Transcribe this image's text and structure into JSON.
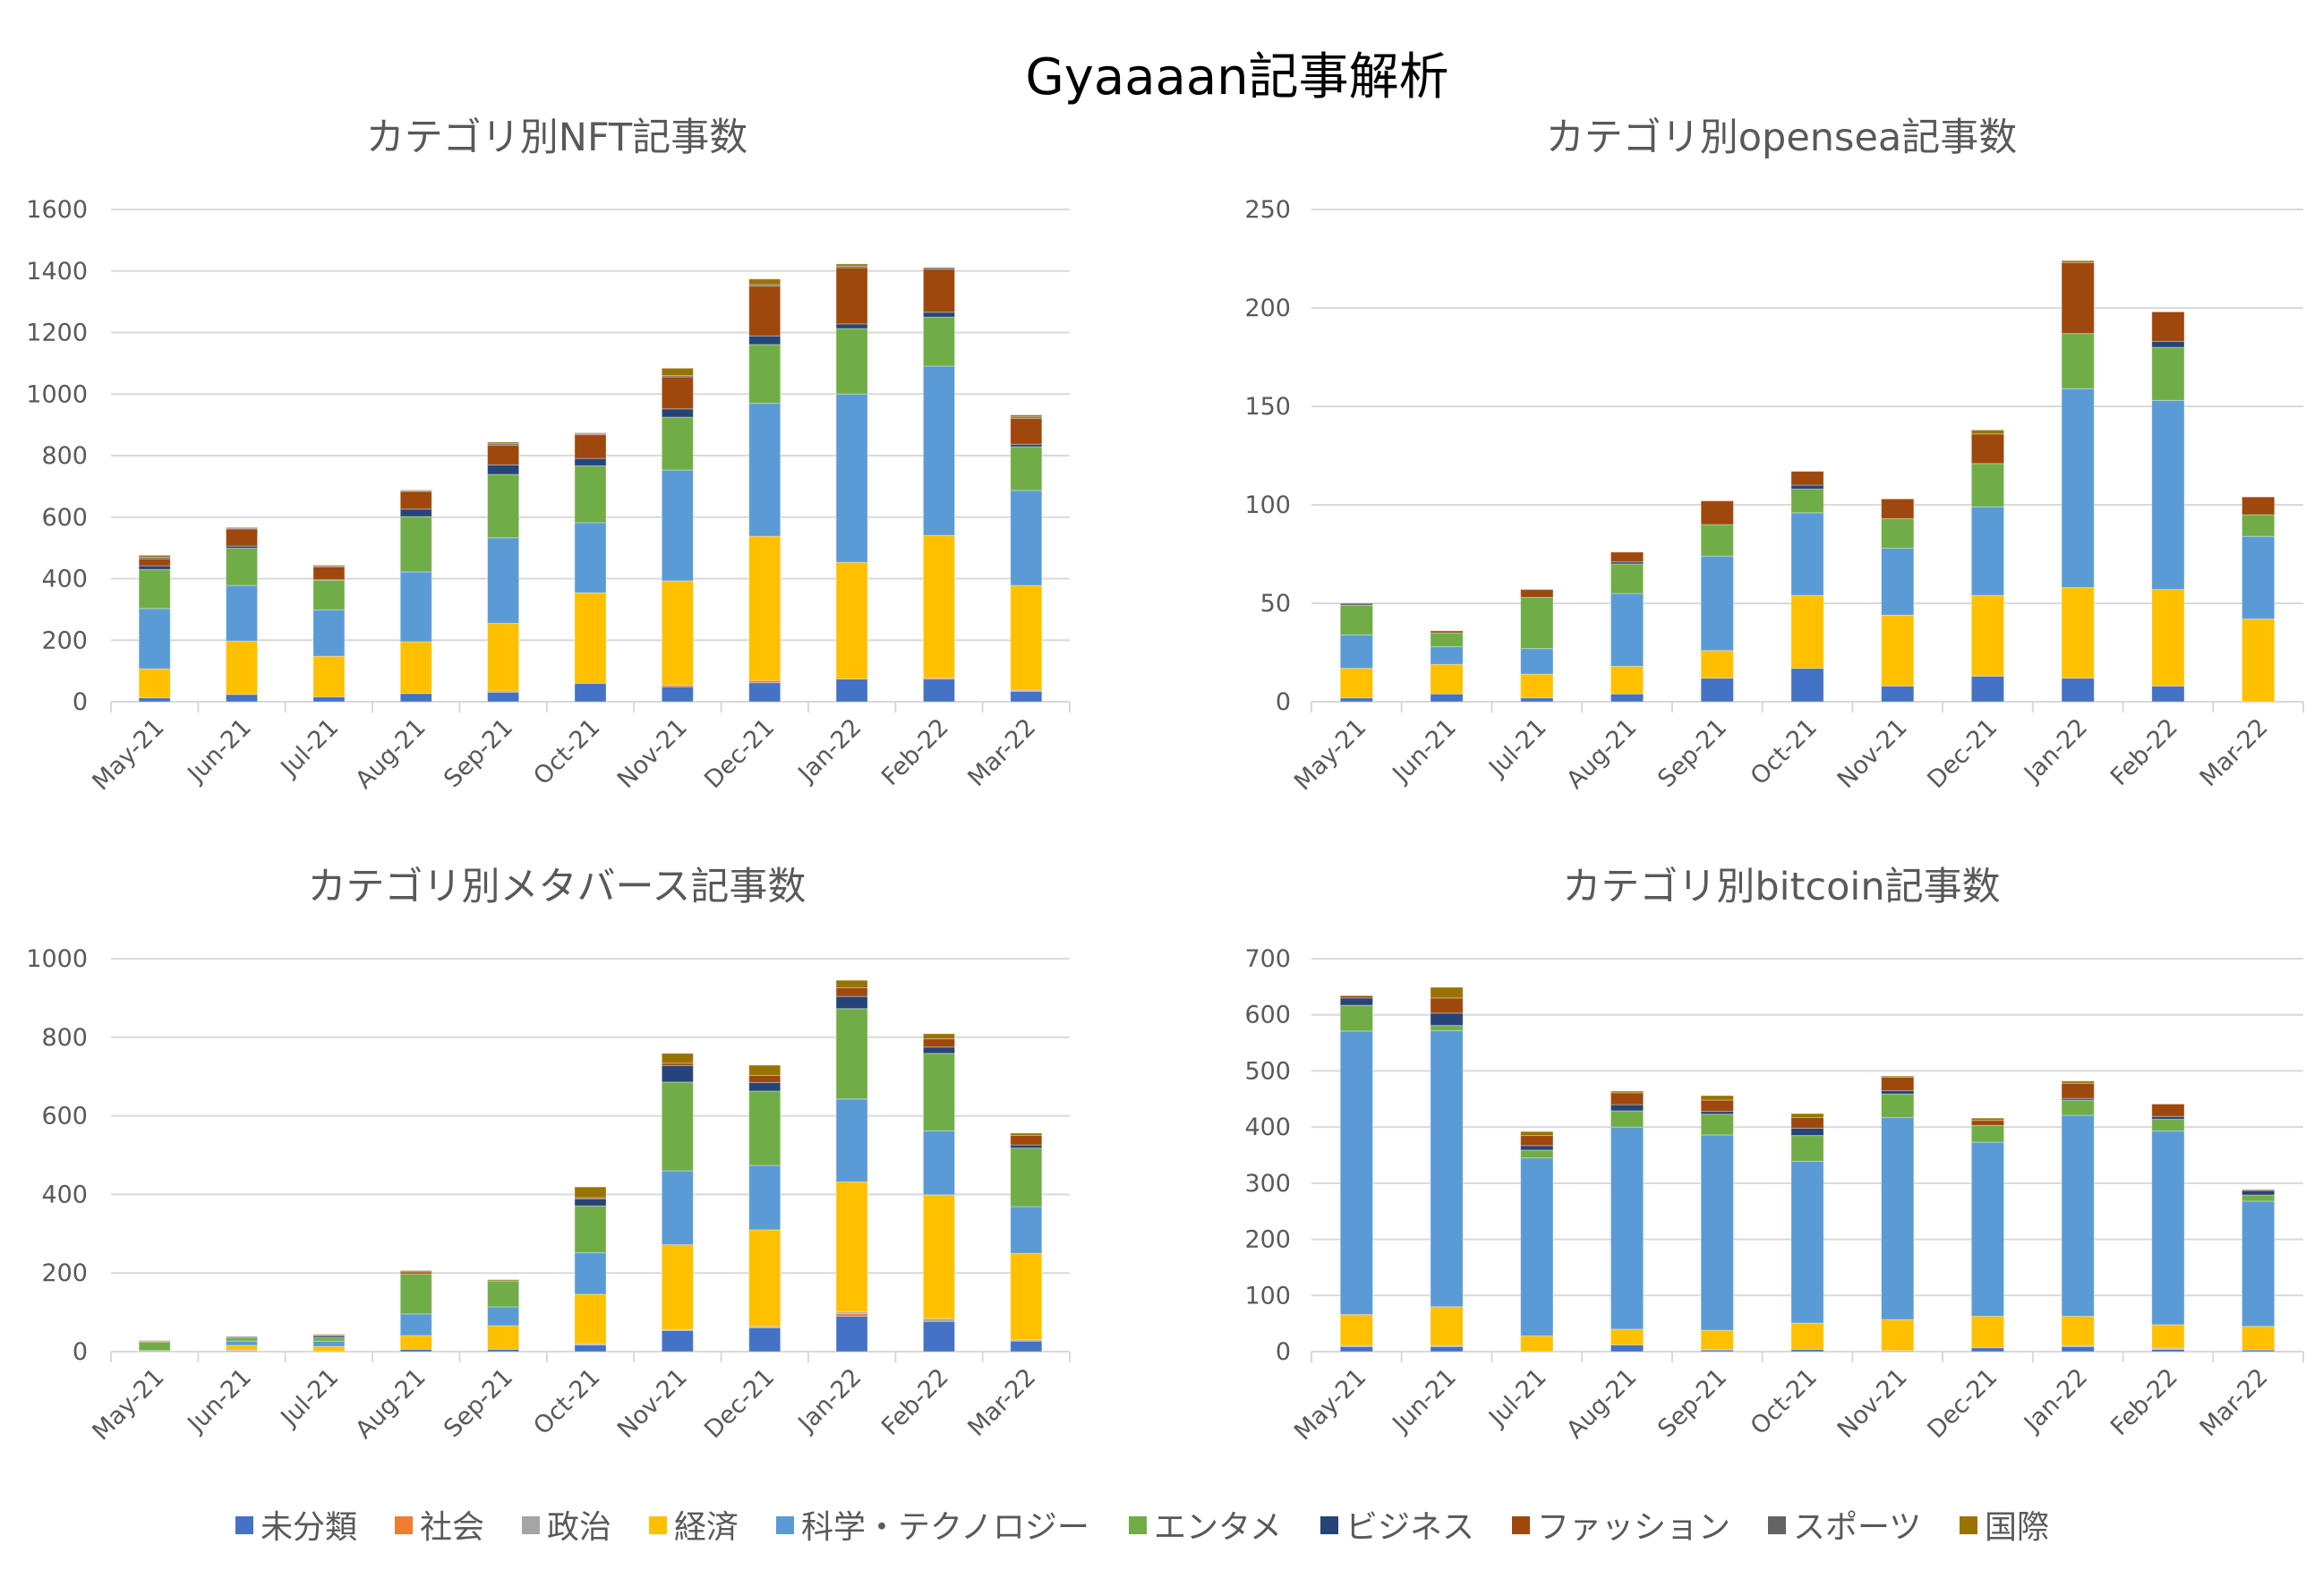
{
  "title": "Gyaaaan記事解析",
  "legend": [
    {
      "label": "未分類",
      "color": "#4472C4"
    },
    {
      "label": "社会",
      "color": "#ED7D31"
    },
    {
      "label": "政治",
      "color": "#A5A5A5"
    },
    {
      "label": "経済",
      "color": "#FFC000"
    },
    {
      "label": "科学・テクノロジー",
      "color": "#5B9BD5"
    },
    {
      "label": "エンタメ",
      "color": "#70AD47"
    },
    {
      "label": "ビジネス",
      "color": "#264478"
    },
    {
      "label": "ファッション",
      "color": "#9E480E"
    },
    {
      "label": "スポーツ",
      "color": "#636363"
    },
    {
      "label": "国際",
      "color": "#997300"
    }
  ],
  "chart_data": [
    {
      "type": "bar",
      "stacked": true,
      "title": "カテゴリ別NFT記事数",
      "categories": [
        "May-21",
        "Jun-21",
        "Jul-21",
        "Aug-21",
        "Sep-21",
        "Oct-21",
        "Nov-21",
        "Dec-21",
        "Jan-22",
        "Feb-22",
        "Mar-22"
      ],
      "ylim": [
        0,
        1600
      ],
      "ytick_step": 200,
      "grid": true,
      "legend": "bottom",
      "series": [
        {
          "name": "未分類",
          "values": [
            13,
            24,
            16,
            27,
            31,
            60,
            49,
            62,
            74,
            74,
            34
          ]
        },
        {
          "name": "社会",
          "values": [
            0,
            0,
            0,
            0,
            4,
            0,
            5,
            7,
            0,
            4,
            0
          ]
        },
        {
          "name": "政治",
          "values": [
            0,
            0,
            0,
            0,
            0,
            0,
            0,
            0,
            0,
            0,
            4
          ]
        },
        {
          "name": "経済",
          "values": [
            94,
            173,
            132,
            168,
            220,
            294,
            339,
            469,
            379,
            463,
            340
          ]
        },
        {
          "name": "科学・テクノロジー",
          "values": [
            196,
            181,
            151,
            227,
            278,
            228,
            360,
            432,
            547,
            550,
            309
          ]
        },
        {
          "name": "エンタメ",
          "values": [
            127,
            121,
            96,
            180,
            206,
            185,
            172,
            191,
            213,
            159,
            142
          ]
        },
        {
          "name": "ビジネス",
          "values": [
            12,
            7,
            2,
            24,
            31,
            24,
            27,
            28,
            15,
            16,
            8
          ]
        },
        {
          "name": "ファッション",
          "values": [
            23,
            56,
            42,
            58,
            64,
            77,
            104,
            162,
            183,
            140,
            84
          ]
        },
        {
          "name": "スポーツ",
          "values": [
            5,
            3,
            3,
            2,
            5,
            3,
            4,
            5,
            5,
            5,
            5
          ]
        },
        {
          "name": "国際",
          "values": [
            6,
            2,
            2,
            2,
            5,
            3,
            24,
            18,
            7,
            0,
            6
          ]
        }
      ]
    },
    {
      "type": "bar",
      "stacked": true,
      "title": "カテゴリ別opensea記事数",
      "categories": [
        "May-21",
        "Jun-21",
        "Jul-21",
        "Aug-21",
        "Sep-21",
        "Oct-21",
        "Nov-21",
        "Dec-21",
        "Jan-22",
        "Feb-22",
        "Mar-22"
      ],
      "ylim": [
        0,
        250
      ],
      "ytick_step": 50,
      "grid": true,
      "legend": "bottom",
      "series": [
        {
          "name": "未分類",
          "values": [
            2,
            4,
            2,
            4,
            12,
            17,
            8,
            13,
            12,
            8,
            0
          ]
        },
        {
          "name": "社会",
          "values": [
            0,
            0,
            0,
            0,
            0,
            0,
            0,
            0,
            0,
            0,
            0
          ]
        },
        {
          "name": "政治",
          "values": [
            0,
            0,
            0,
            0,
            0,
            0,
            0,
            0,
            0,
            0,
            0
          ]
        },
        {
          "name": "経済",
          "values": [
            15,
            15,
            12,
            14,
            14,
            37,
            36,
            41,
            46,
            49,
            42
          ]
        },
        {
          "name": "科学・テクノロジー",
          "values": [
            17,
            9,
            13,
            37,
            48,
            42,
            34,
            45,
            101,
            96,
            42
          ]
        },
        {
          "name": "エンタメ",
          "values": [
            15,
            7,
            26,
            15,
            16,
            12,
            15,
            22,
            28,
            27,
            11
          ]
        },
        {
          "name": "ビジネス",
          "values": [
            0,
            0,
            0,
            1,
            0,
            2,
            0,
            0,
            0,
            3,
            0
          ]
        },
        {
          "name": "ファッション",
          "values": [
            0,
            1,
            4,
            5,
            12,
            7,
            10,
            15,
            36,
            15,
            9
          ]
        },
        {
          "name": "スポーツ",
          "values": [
            1,
            0,
            0,
            0,
            0,
            0,
            0,
            0,
            0,
            0,
            0
          ]
        },
        {
          "name": "国際",
          "values": [
            0,
            0,
            0,
            0,
            0,
            0,
            0,
            2,
            1,
            0,
            0
          ]
        }
      ]
    },
    {
      "type": "bar",
      "stacked": true,
      "title": "カテゴリ別メタバース記事数",
      "categories": [
        "May-21",
        "Jun-21",
        "Jul-21",
        "Aug-21",
        "Sep-21",
        "Oct-21",
        "Nov-21",
        "Dec-21",
        "Jan-22",
        "Feb-22",
        "Mar-22"
      ],
      "ylim": [
        0,
        1000
      ],
      "ytick_step": 200,
      "grid": true,
      "legend": "bottom",
      "series": [
        {
          "name": "未分類",
          "values": [
            0,
            2,
            0,
            6,
            6,
            17,
            54,
            61,
            90,
            77,
            27
          ]
        },
        {
          "name": "社会",
          "values": [
            0,
            0,
            0,
            0,
            0,
            0,
            0,
            0,
            7,
            0,
            0
          ]
        },
        {
          "name": "政治",
          "values": [
            3,
            2,
            0,
            0,
            0,
            3,
            2,
            3,
            4,
            7,
            3
          ]
        },
        {
          "name": "経済",
          "values": [
            0,
            12,
            13,
            35,
            60,
            126,
            216,
            246,
            331,
            315,
            220
          ]
        },
        {
          "name": "科学・テクノロジー",
          "values": [
            0,
            11,
            14,
            55,
            48,
            106,
            188,
            164,
            211,
            163,
            119
          ]
        },
        {
          "name": "エンタメ",
          "values": [
            21,
            8,
            9,
            102,
            66,
            119,
            226,
            189,
            230,
            197,
            149
          ]
        },
        {
          "name": "ビジネス",
          "values": [
            0,
            0,
            4,
            0,
            0,
            18,
            42,
            22,
            31,
            16,
            8
          ]
        },
        {
          "name": "ファッション",
          "values": [
            2,
            0,
            2,
            5,
            0,
            3,
            6,
            18,
            22,
            21,
            24
          ]
        },
        {
          "name": "スポーツ",
          "values": [
            1,
            3,
            0,
            0,
            0,
            0,
            0,
            0,
            0,
            0,
            0
          ]
        },
        {
          "name": "国際",
          "values": [
            1,
            0,
            2,
            3,
            3,
            27,
            25,
            26,
            19,
            13,
            6
          ]
        }
      ]
    },
    {
      "type": "bar",
      "stacked": true,
      "title": "カテゴリ別bitcoin記事数",
      "categories": [
        "May-21",
        "Jun-21",
        "Jul-21",
        "Aug-21",
        "Sep-21",
        "Oct-21",
        "Nov-21",
        "Dec-21",
        "Jan-22",
        "Feb-22",
        "Mar-22"
      ],
      "ylim": [
        0,
        700
      ],
      "ytick_step": 100,
      "grid": true,
      "legend": "bottom",
      "series": [
        {
          "name": "未分類",
          "values": [
            9,
            9,
            0,
            12,
            3,
            4,
            0,
            7,
            9,
            4,
            3
          ]
        },
        {
          "name": "社会",
          "values": [
            0,
            0,
            0,
            0,
            0,
            0,
            0,
            0,
            0,
            0,
            0
          ]
        },
        {
          "name": "政治",
          "values": [
            2,
            2,
            0,
            0,
            1,
            0,
            2,
            0,
            2,
            2,
            0
          ]
        },
        {
          "name": "経済",
          "values": [
            55,
            69,
            28,
            28,
            34,
            47,
            55,
            56,
            52,
            42,
            42
          ]
        },
        {
          "name": "科学・テクノロジー",
          "values": [
            505,
            492,
            317,
            360,
            348,
            288,
            360,
            310,
            358,
            345,
            223
          ]
        },
        {
          "name": "エンタメ",
          "values": [
            46,
            9,
            14,
            29,
            37,
            46,
            42,
            30,
            27,
            21,
            11
          ]
        },
        {
          "name": "ビジネス",
          "values": [
            13,
            22,
            8,
            11,
            5,
            13,
            6,
            0,
            3,
            5,
            8
          ]
        },
        {
          "name": "ファッション",
          "values": [
            4,
            27,
            18,
            21,
            20,
            19,
            24,
            9,
            27,
            22,
            1
          ]
        },
        {
          "name": "スポーツ",
          "values": [
            0,
            0,
            0,
            0,
            0,
            0,
            0,
            0,
            0,
            0,
            0
          ]
        },
        {
          "name": "国際",
          "values": [
            0,
            19,
            7,
            3,
            8,
            7,
            2,
            4,
            4,
            0,
            1
          ]
        }
      ]
    }
  ]
}
